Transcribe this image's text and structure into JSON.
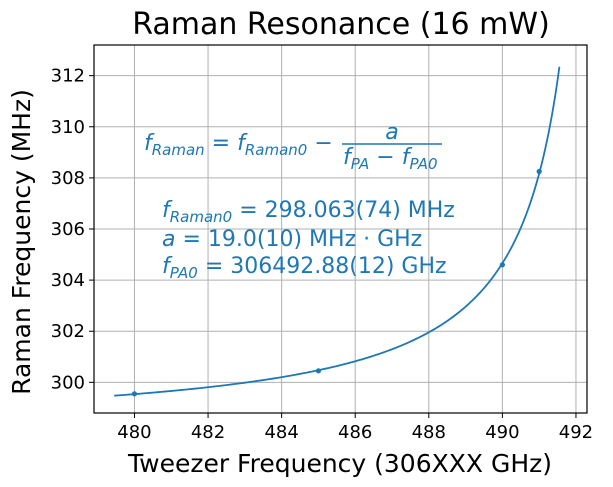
{
  "chart_data": {
    "type": "scatter",
    "title": "Raman Resonance (16 mW)",
    "xlabel": "Tweezer Frequency (306XXX GHz)",
    "ylabel": "Raman Frequency (MHz)",
    "xlim": [
      478.9,
      492.3
    ],
    "ylim": [
      298.8,
      313.2
    ],
    "xticks": [
      480,
      482,
      484,
      486,
      488,
      490,
      492
    ],
    "yticks": [
      300,
      302,
      304,
      306,
      308,
      310,
      312
    ],
    "grid": true,
    "series": [
      {
        "points": [
          {
            "x": 480,
            "y": 299.55
          },
          {
            "x": 485,
            "y": 300.45
          },
          {
            "x": 490,
            "y": 304.6
          },
          {
            "x": 491,
            "y": 308.25
          }
        ]
      }
    ],
    "fit": {
      "f_raman0": 298.063,
      "a": 19.0,
      "f_pa0": 492.88,
      "x_range": [
        479.45,
        491.55
      ]
    },
    "annotations": {
      "formula": {
        "lhs": "f",
        "lhs_sub": "Raman",
        "eq": " = ",
        "t1": "f",
        "t1_sub": "Raman0",
        "minus": " − ",
        "numerator": "a",
        "den_f1": "f",
        "den_sub1": "PA",
        "den_minus": " − ",
        "den_f2": "f",
        "den_sub2": "PA0"
      },
      "param1": {
        "sym": "f",
        "sub": "Raman0",
        "rest": " = 298.063(74) MHz"
      },
      "param2": {
        "sym": "a",
        "rest": " = 19.0(10) MHz · GHz"
      },
      "param3": {
        "sym": "f",
        "sub": "PA0",
        "rest": " = 306492.88(12) GHz"
      }
    },
    "colors": {
      "series": "#1f77b4",
      "grid": "#b0b0b0",
      "axes": "#000000"
    }
  }
}
